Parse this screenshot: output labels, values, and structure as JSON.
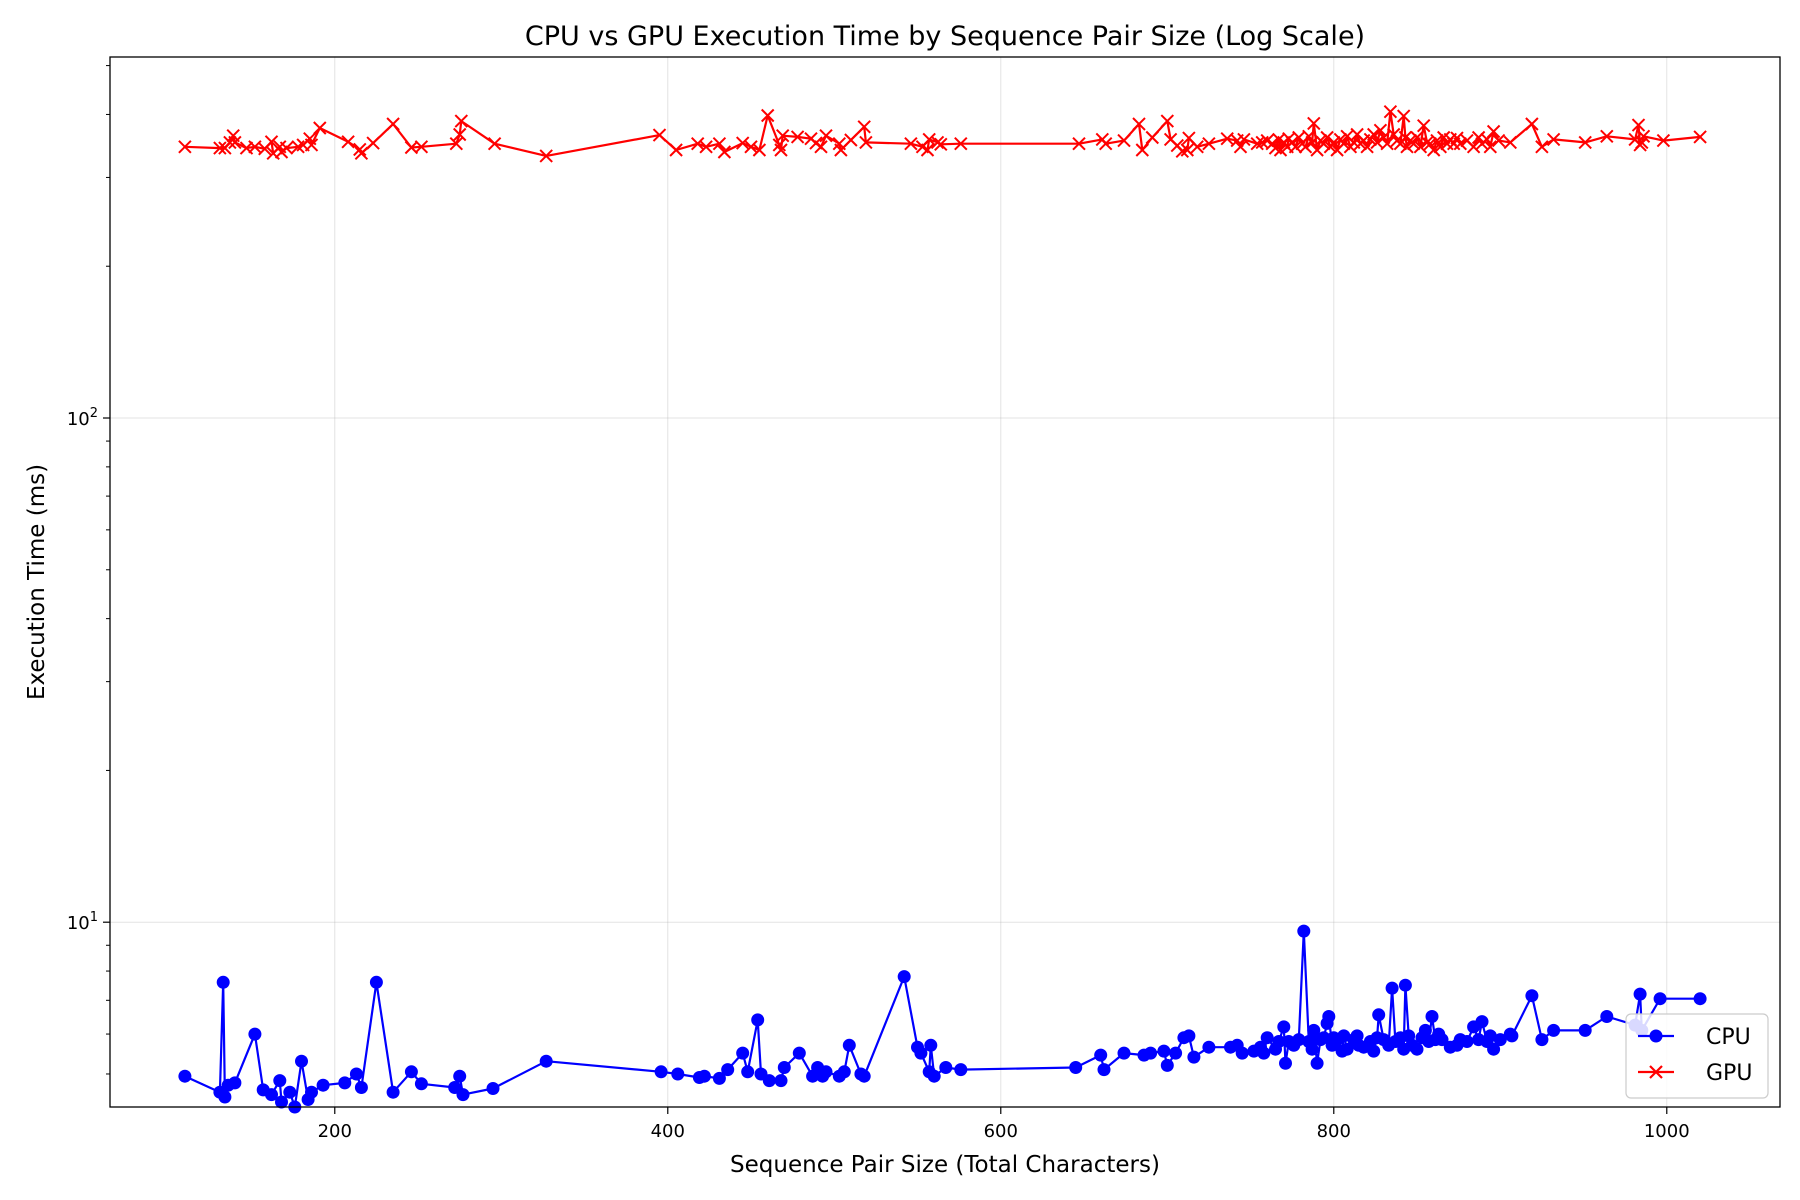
{
  "chart_data": {
    "type": "line",
    "title": "CPU vs GPU Execution Time by Sequence Pair Size (Log Scale)",
    "xlabel": "Sequence Pair Size (Total Characters)",
    "ylabel": "Execution Time (ms)",
    "y_scale": "log",
    "xlim": [
      65,
      1068
    ],
    "ylim": [
      4.3,
      520
    ],
    "x_ticks": [
      200,
      400,
      600,
      800,
      1000
    ],
    "x_tick_labels": [
      "200",
      "400",
      "600",
      "800",
      "1000"
    ],
    "y_ticks": [
      10,
      100
    ],
    "y_tick_base": "10",
    "y_tick_exponents": [
      "1",
      "2"
    ],
    "grid": true,
    "legend_position": "lower-right",
    "series": [
      {
        "name": "CPU",
        "color": "#0000ff",
        "marker": "circle",
        "points": [
          [
            110,
            4.95
          ],
          [
            131,
            4.6
          ],
          [
            133,
            7.6
          ],
          [
            134,
            4.5
          ],
          [
            136,
            4.75
          ],
          [
            140,
            4.8
          ],
          [
            152,
            6
          ],
          [
            157,
            4.65
          ],
          [
            162,
            4.55
          ],
          [
            167,
            4.85
          ],
          [
            168,
            4.4
          ],
          [
            173,
            4.6
          ],
          [
            176,
            4.3
          ],
          [
            180,
            5.3
          ],
          [
            184,
            4.45
          ],
          [
            186,
            4.6
          ],
          [
            193,
            4.75
          ],
          [
            206,
            4.8
          ],
          [
            213,
            5
          ],
          [
            216,
            4.7
          ],
          [
            225,
            7.6
          ],
          [
            235,
            4.6
          ],
          [
            246,
            5.05
          ],
          [
            252,
            4.78
          ],
          [
            272,
            4.7
          ],
          [
            275,
            4.95
          ],
          [
            277,
            4.55
          ],
          [
            295,
            4.68
          ],
          [
            327,
            5.3
          ],
          [
            396,
            5.05
          ],
          [
            406,
            5
          ],
          [
            419,
            4.92
          ],
          [
            422,
            4.95
          ],
          [
            431,
            4.9
          ],
          [
            436,
            5.1
          ],
          [
            445,
            5.5
          ],
          [
            448,
            5.05
          ],
          [
            454,
            6.4
          ],
          [
            456,
            5
          ],
          [
            461,
            4.85
          ],
          [
            468,
            4.85
          ],
          [
            470,
            5.15
          ],
          [
            479,
            5.5
          ],
          [
            487,
            4.95
          ],
          [
            490,
            5.15
          ],
          [
            493,
            4.95
          ],
          [
            495,
            5.05
          ],
          [
            503,
            4.95
          ],
          [
            506,
            5.05
          ],
          [
            509,
            5.7
          ],
          [
            516,
            5
          ],
          [
            518,
            4.95
          ],
          [
            542,
            7.8
          ],
          [
            550,
            5.65
          ],
          [
            552,
            5.5
          ],
          [
            557,
            5.05
          ],
          [
            558,
            5.7
          ],
          [
            560,
            4.95
          ],
          [
            567,
            5.15
          ],
          [
            576,
            5.1
          ],
          [
            645,
            5.15
          ],
          [
            660,
            5.45
          ],
          [
            662,
            5.1
          ],
          [
            674,
            5.5
          ],
          [
            686,
            5.45
          ],
          [
            690,
            5.5
          ],
          [
            698,
            5.55
          ],
          [
            700,
            5.2
          ],
          [
            705,
            5.5
          ],
          [
            710,
            5.9
          ],
          [
            713,
            5.95
          ],
          [
            716,
            5.4
          ],
          [
            725,
            5.65
          ],
          [
            738,
            5.65
          ],
          [
            742,
            5.7
          ],
          [
            745,
            5.5
          ],
          [
            752,
            5.55
          ],
          [
            756,
            5.65
          ],
          [
            758,
            5.5
          ],
          [
            760,
            5.9
          ],
          [
            765,
            5.6
          ],
          [
            767,
            5.8
          ],
          [
            770,
            6.2
          ],
          [
            771,
            5.25
          ],
          [
            773,
            5.8
          ],
          [
            776,
            5.7
          ],
          [
            779,
            5.85
          ],
          [
            782,
            9.6
          ],
          [
            785,
            5.8
          ],
          [
            787,
            5.6
          ],
          [
            788,
            6.1
          ],
          [
            790,
            5.25
          ],
          [
            792,
            5.85
          ],
          [
            794,
            5.9
          ],
          [
            796,
            6.3
          ],
          [
            797,
            6.5
          ],
          [
            799,
            5.7
          ],
          [
            800,
            5.9
          ],
          [
            802,
            5.85
          ],
          [
            805,
            5.55
          ],
          [
            806,
            5.95
          ],
          [
            808,
            5.6
          ],
          [
            812,
            5.85
          ],
          [
            814,
            5.95
          ],
          [
            815,
            5.7
          ],
          [
            818,
            5.65
          ],
          [
            822,
            5.8
          ],
          [
            824,
            5.55
          ],
          [
            826,
            5.9
          ],
          [
            827,
            6.55
          ],
          [
            830,
            5.85
          ],
          [
            833,
            5.7
          ],
          [
            835,
            7.4
          ],
          [
            837,
            5.8
          ],
          [
            840,
            5.9
          ],
          [
            842,
            5.6
          ],
          [
            843,
            7.5
          ],
          [
            845,
            5.95
          ],
          [
            847,
            5.7
          ],
          [
            850,
            5.6
          ],
          [
            853,
            5.9
          ],
          [
            855,
            6.1
          ],
          [
            857,
            5.8
          ],
          [
            859,
            6.5
          ],
          [
            861,
            5.85
          ],
          [
            863,
            6.0
          ],
          [
            865,
            5.85
          ],
          [
            870,
            5.65
          ],
          [
            874,
            5.7
          ],
          [
            876,
            5.85
          ],
          [
            880,
            5.8
          ],
          [
            884,
            6.2
          ],
          [
            887,
            5.85
          ],
          [
            889,
            6.35
          ],
          [
            892,
            5.8
          ],
          [
            894,
            5.95
          ],
          [
            896,
            5.6
          ],
          [
            900,
            5.85
          ],
          [
            906,
            6.0
          ],
          [
            907,
            5.95
          ],
          [
            919,
            7.15
          ],
          [
            925,
            5.85
          ],
          [
            932,
            6.1
          ],
          [
            951,
            6.1
          ],
          [
            964,
            6.5
          ],
          [
            981,
            6.25
          ],
          [
            984,
            7.2
          ],
          [
            985,
            6.1
          ],
          [
            996,
            7.05
          ],
          [
            1020,
            7.05
          ]
        ]
      },
      {
        "name": "GPU",
        "color": "#ff0000",
        "marker": "x",
        "points": [
          [
            110,
            345
          ],
          [
            131,
            343
          ],
          [
            134,
            343
          ],
          [
            137,
            352
          ],
          [
            139,
            363
          ],
          [
            140,
            352
          ],
          [
            147,
            343
          ],
          [
            152,
            345
          ],
          [
            158,
            342
          ],
          [
            162,
            353
          ],
          [
            163,
            335
          ],
          [
            167,
            345
          ],
          [
            168,
            337
          ],
          [
            171,
            343
          ],
          [
            178,
            345
          ],
          [
            181,
            348
          ],
          [
            185,
            358
          ],
          [
            186,
            348
          ],
          [
            191,
            376
          ],
          [
            208,
            353
          ],
          [
            215,
            341
          ],
          [
            216,
            335
          ],
          [
            223,
            351
          ],
          [
            235,
            383
          ],
          [
            246,
            344
          ],
          [
            252,
            345
          ],
          [
            273,
            350
          ],
          [
            275,
            365
          ],
          [
            276,
            388
          ],
          [
            296,
            350
          ],
          [
            327,
            331
          ],
          [
            395,
            364
          ],
          [
            405,
            340
          ],
          [
            418,
            350
          ],
          [
            423,
            345
          ],
          [
            431,
            350
          ],
          [
            434,
            337
          ],
          [
            445,
            351
          ],
          [
            450,
            345
          ],
          [
            455,
            340
          ],
          [
            460,
            398
          ],
          [
            467,
            348
          ],
          [
            468,
            340
          ],
          [
            469,
            363
          ],
          [
            478,
            361
          ],
          [
            486,
            358
          ],
          [
            489,
            351
          ],
          [
            492,
            345
          ],
          [
            495,
            363
          ],
          [
            503,
            350
          ],
          [
            504,
            340
          ],
          [
            510,
            356
          ],
          [
            518,
            378
          ],
          [
            519,
            352
          ],
          [
            546,
            350
          ],
          [
            553,
            345
          ],
          [
            556,
            340
          ],
          [
            557,
            357
          ],
          [
            562,
            352
          ],
          [
            564,
            349
          ],
          [
            576,
            350
          ],
          [
            647,
            350
          ],
          [
            661,
            357
          ],
          [
            663,
            350
          ],
          [
            674,
            355
          ],
          [
            683,
            383
          ],
          [
            685,
            340
          ],
          [
            691,
            360
          ],
          [
            700,
            388
          ],
          [
            702,
            357
          ],
          [
            706,
            347
          ],
          [
            709,
            338
          ],
          [
            712,
            340
          ],
          [
            713,
            359
          ],
          [
            718,
            345
          ],
          [
            725,
            350
          ],
          [
            736,
            358
          ],
          [
            742,
            355
          ],
          [
            744,
            345
          ],
          [
            746,
            357
          ],
          [
            754,
            350
          ],
          [
            757,
            352
          ],
          [
            760,
            355
          ],
          [
            763,
            350
          ],
          [
            765,
            343
          ],
          [
            767,
            357
          ],
          [
            768,
            340
          ],
          [
            770,
            352
          ],
          [
            772,
            345
          ],
          [
            773,
            358
          ],
          [
            775,
            352
          ],
          [
            777,
            345
          ],
          [
            779,
            360
          ],
          [
            781,
            350
          ],
          [
            783,
            345
          ],
          [
            785,
            362
          ],
          [
            787,
            352
          ],
          [
            788,
            384
          ],
          [
            790,
            340
          ],
          [
            792,
            355
          ],
          [
            794,
            350
          ],
          [
            796,
            360
          ],
          [
            798,
            345
          ],
          [
            800,
            352
          ],
          [
            802,
            340
          ],
          [
            804,
            357
          ],
          [
            806,
            350
          ],
          [
            808,
            362
          ],
          [
            810,
            345
          ],
          [
            812,
            352
          ],
          [
            814,
            365
          ],
          [
            816,
            350
          ],
          [
            818,
            355
          ],
          [
            820,
            345
          ],
          [
            822,
            357
          ],
          [
            824,
            365
          ],
          [
            826,
            352
          ],
          [
            828,
            372
          ],
          [
            830,
            360
          ],
          [
            832,
            350
          ],
          [
            834,
            405
          ],
          [
            836,
            365
          ],
          [
            838,
            355
          ],
          [
            840,
            350
          ],
          [
            842,
            397
          ],
          [
            843,
            360
          ],
          [
            844,
            345
          ],
          [
            846,
            355
          ],
          [
            848,
            350
          ],
          [
            850,
            360
          ],
          [
            852,
            345
          ],
          [
            854,
            380
          ],
          [
            856,
            352
          ],
          [
            858,
            350
          ],
          [
            860,
            340
          ],
          [
            862,
            355
          ],
          [
            864,
            345
          ],
          [
            866,
            360
          ],
          [
            868,
            350
          ],
          [
            870,
            357
          ],
          [
            872,
            350
          ],
          [
            874,
            359
          ],
          [
            876,
            350
          ],
          [
            880,
            355
          ],
          [
            884,
            345
          ],
          [
            887,
            360
          ],
          [
            889,
            350
          ],
          [
            892,
            357
          ],
          [
            894,
            345
          ],
          [
            896,
            370
          ],
          [
            899,
            355
          ],
          [
            906,
            352
          ],
          [
            919,
            383
          ],
          [
            925,
            345
          ],
          [
            932,
            357
          ],
          [
            951,
            352
          ],
          [
            964,
            362
          ],
          [
            981,
            357
          ],
          [
            983,
            381
          ],
          [
            984,
            348
          ],
          [
            985,
            352
          ],
          [
            986,
            362
          ],
          [
            998,
            355
          ],
          [
            1020,
            361
          ]
        ]
      }
    ]
  }
}
